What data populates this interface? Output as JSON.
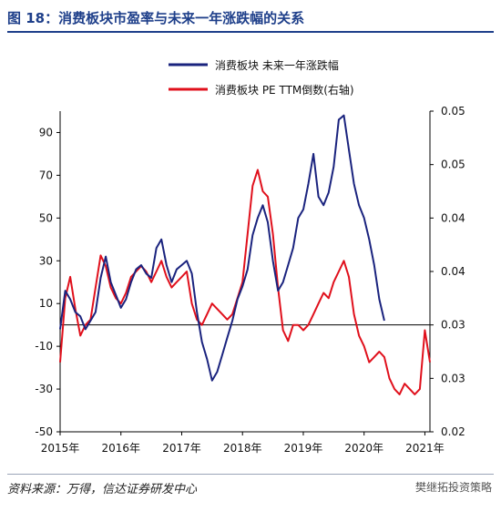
{
  "figure": {
    "title": "图 18：消费板块市盈率与未来一年涨跌幅的关系",
    "source": "资料来源：万得，信达证券研发中心",
    "brand": "樊继拓投资策略"
  },
  "colors": {
    "title": "#1e3f8a",
    "series_1": "#1a237e",
    "series_2": "#e0101c"
  },
  "chart_data": {
    "type": "line",
    "legend_position": "top-center",
    "grid": false,
    "x_axis": {
      "range": [
        "2015-01",
        "2021-02"
      ],
      "tick_labels": [
        "2015年",
        "2016年",
        "2017年",
        "2018年",
        "2019年",
        "2020年",
        "2021年"
      ]
    },
    "y_left": {
      "range": [
        -50,
        100
      ],
      "ticks": [
        90,
        70,
        50,
        30,
        10,
        -10,
        -30,
        -50
      ]
    },
    "y_right": {
      "range": [
        0.02,
        0.05
      ],
      "tick_positions": [
        0.05,
        0.045,
        0.04,
        0.035,
        0.03,
        0.025,
        0.02
      ],
      "tick_labels": [
        "0.05",
        "0.05",
        "0.04",
        "0.04",
        "0.03",
        "0.03",
        "0.02"
      ]
    },
    "reference_line": {
      "axis": "left",
      "y": 0
    },
    "series": [
      {
        "name": "消费板块 未来一年涨跌幅",
        "axis": "left",
        "x": [
          "2015-01",
          "2015-02",
          "2015-03",
          "2015-04",
          "2015-05",
          "2015-06",
          "2015-07",
          "2015-08",
          "2015-09",
          "2015-10",
          "2015-11",
          "2015-12",
          "2016-01",
          "2016-02",
          "2016-03",
          "2016-04",
          "2016-05",
          "2016-06",
          "2016-07",
          "2016-08",
          "2016-09",
          "2016-10",
          "2016-11",
          "2016-12",
          "2017-01",
          "2017-02",
          "2017-03",
          "2017-04",
          "2017-05",
          "2017-06",
          "2017-07",
          "2017-08",
          "2017-09",
          "2017-10",
          "2017-11",
          "2017-12",
          "2018-01",
          "2018-02",
          "2018-03",
          "2018-04",
          "2018-05",
          "2018-06",
          "2018-07",
          "2018-08",
          "2018-09",
          "2018-10",
          "2018-11",
          "2018-12",
          "2019-01",
          "2019-02",
          "2019-03",
          "2019-04",
          "2019-05",
          "2019-06",
          "2019-07",
          "2019-08",
          "2019-09",
          "2019-10",
          "2019-11",
          "2019-12",
          "2020-01",
          "2020-02",
          "2020-03",
          "2020-04",
          "2020-05"
        ],
        "y": [
          -2,
          16,
          12,
          6,
          4,
          -2,
          2,
          6,
          22,
          32,
          20,
          14,
          8,
          12,
          20,
          26,
          28,
          24,
          22,
          36,
          40,
          28,
          20,
          26,
          28,
          30,
          24,
          6,
          -8,
          -16,
          -26,
          -22,
          -14,
          -6,
          2,
          12,
          18,
          26,
          42,
          50,
          56,
          48,
          30,
          16,
          20,
          28,
          36,
          50,
          54,
          66,
          80,
          60,
          56,
          62,
          74,
          96,
          98,
          82,
          66,
          56,
          50,
          40,
          28,
          12,
          2
        ]
      },
      {
        "name": "消费板块 PE TTM倒数(右轴)",
        "axis": "right",
        "x": [
          "2015-01",
          "2015-02",
          "2015-03",
          "2015-04",
          "2015-05",
          "2015-06",
          "2015-07",
          "2015-08",
          "2015-09",
          "2015-10",
          "2015-11",
          "2015-12",
          "2016-01",
          "2016-02",
          "2016-03",
          "2016-04",
          "2016-05",
          "2016-06",
          "2016-07",
          "2016-08",
          "2016-09",
          "2016-10",
          "2016-11",
          "2016-12",
          "2017-01",
          "2017-02",
          "2017-03",
          "2017-04",
          "2017-05",
          "2017-06",
          "2017-07",
          "2017-08",
          "2017-09",
          "2017-10",
          "2017-11",
          "2017-12",
          "2018-01",
          "2018-02",
          "2018-03",
          "2018-04",
          "2018-05",
          "2018-06",
          "2018-07",
          "2018-08",
          "2018-09",
          "2018-10",
          "2018-11",
          "2018-12",
          "2019-01",
          "2019-02",
          "2019-03",
          "2019-04",
          "2019-05",
          "2019-06",
          "2019-07",
          "2019-08",
          "2019-09",
          "2019-10",
          "2019-11",
          "2019-12",
          "2020-01",
          "2020-02",
          "2020-03",
          "2020-04",
          "2020-05",
          "2020-06",
          "2020-07",
          "2020-08",
          "2020-09",
          "2020-10",
          "2020-11",
          "2020-12",
          "2021-01",
          "2021-02"
        ],
        "y": [
          0.0265,
          0.0325,
          0.0345,
          0.0315,
          0.029,
          0.03,
          0.0305,
          0.0335,
          0.0365,
          0.0355,
          0.0335,
          0.0325,
          0.032,
          0.033,
          0.0345,
          0.035,
          0.0355,
          0.035,
          0.034,
          0.035,
          0.036,
          0.0345,
          0.0335,
          0.034,
          0.0345,
          0.035,
          0.032,
          0.0305,
          0.03,
          0.031,
          0.032,
          0.0315,
          0.031,
          0.0305,
          0.031,
          0.0325,
          0.034,
          0.0385,
          0.043,
          0.0445,
          0.0425,
          0.042,
          0.0385,
          0.0335,
          0.0295,
          0.0285,
          0.03,
          0.03,
          0.0295,
          0.03,
          0.031,
          0.032,
          0.033,
          0.0325,
          0.034,
          0.035,
          0.036,
          0.0345,
          0.031,
          0.029,
          0.028,
          0.0265,
          0.027,
          0.0275,
          0.027,
          0.025,
          0.024,
          0.0235,
          0.0245,
          0.024,
          0.0235,
          0.024,
          0.0295,
          0.0265
        ]
      }
    ]
  }
}
